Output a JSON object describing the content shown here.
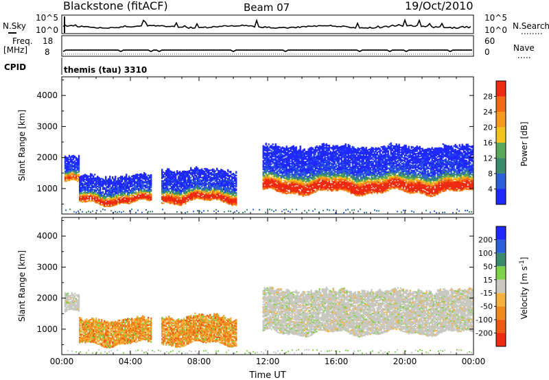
{
  "header": {
    "station": "Blackstone (fitACF)",
    "beam": "Beam 07",
    "date": "19/Oct/2010"
  },
  "top_panels": {
    "nsky": {
      "left_label": "N.Sky",
      "left_ticks": [
        "10^5",
        "10^0"
      ],
      "right_label": "N.Search",
      "right_ticks": [
        "10^5",
        "10^0"
      ]
    },
    "freq": {
      "left_label": "Freq.",
      "left_unit": "[MHz]",
      "left_ticks": [
        "18",
        "8"
      ],
      "right_label": "Nave",
      "right_ticks": [
        "60",
        "0"
      ]
    },
    "cpid_label": "CPID",
    "cpid_value": "themis (tau) 3310"
  },
  "chart_data": [
    {
      "type": "heatmap",
      "name": "power",
      "xlabel": "",
      "ylabel": "Slant Range [km]",
      "xlim": [
        0,
        24
      ],
      "ylim": [
        180,
        4600
      ],
      "yticks": [
        "1000",
        "2000",
        "3000",
        "4000"
      ],
      "colorbar_label": "Power [dB]",
      "colorbar_ticks": [
        "4",
        "8",
        "12",
        "16",
        "20",
        "24",
        "28"
      ],
      "colorbar_range": [
        0,
        32
      ],
      "colors": [
        "#1e28ff",
        "#2c5fd8",
        "#3c8a6e",
        "#5aa85a",
        "#f2c31c",
        "#f59a1e",
        "#f36a14",
        "#ee2a10"
      ],
      "echo_bands": [
        {
          "t0": 0.15,
          "t1": 1.0,
          "r0": 1150,
          "r1": 2050,
          "top_level": 24
        },
        {
          "t0": 1.0,
          "t1": 5.2,
          "r0": 500,
          "r1": 1450,
          "top_level": 28
        },
        {
          "t0": 5.8,
          "t1": 10.2,
          "r0": 550,
          "r1": 1650,
          "top_level": 28
        },
        {
          "t0": 11.7,
          "t1": 24.0,
          "r0": 850,
          "r1": 2400,
          "top_level": 30
        }
      ]
    },
    {
      "type": "heatmap",
      "name": "velocity",
      "xlabel": "Time UT",
      "ylabel": "Slant Range [km]",
      "xlim": [
        0,
        24
      ],
      "ylim": [
        180,
        4600
      ],
      "xticks": [
        "00:00",
        "04:00",
        "08:00",
        "12:00",
        "16:00",
        "20:00",
        "00:00"
      ],
      "yticks": [
        "1000",
        "2000",
        "3000",
        "4000"
      ],
      "colorbar_label": "Velocity [m s^-1]",
      "colorbar_ticks": [
        "200",
        "100",
        "50",
        "15",
        "-15",
        "-50",
        "-100",
        "-200"
      ],
      "colors": [
        "#1e28ff",
        "#2c5fd8",
        "#3c8a6e",
        "#7fd34a",
        "#c8c8c0",
        "#f5b23c",
        "#f08a1e",
        "#ee5a14",
        "#ee2a10"
      ],
      "echo_bands": [
        {
          "t0": 0.15,
          "t1": 1.0,
          "r0": 1500,
          "r1": 2150,
          "class": "ground"
        },
        {
          "t0": 1.0,
          "t1": 5.2,
          "r0": 500,
          "r1": 1350,
          "class": "negative"
        },
        {
          "t0": 5.8,
          "t1": 10.2,
          "r0": 500,
          "r1": 1450,
          "class": "negative"
        },
        {
          "t0": 11.7,
          "t1": 24.0,
          "r0": 850,
          "r1": 2300,
          "class": "ground"
        }
      ]
    }
  ]
}
